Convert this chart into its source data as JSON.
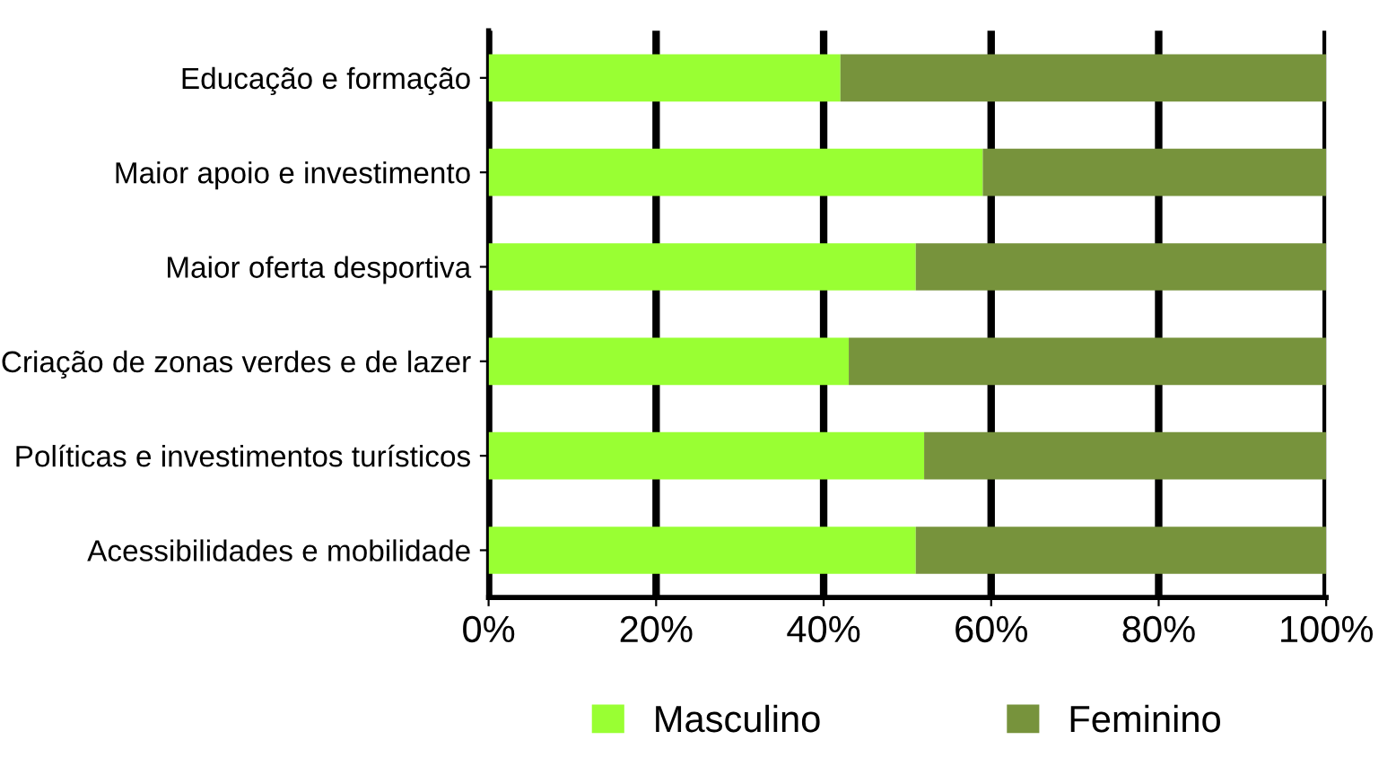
{
  "chart_data": {
    "type": "bar",
    "orientation": "horizontal",
    "stacked": true,
    "categories": [
      "Educação e formação",
      "Maior apoio e investimento",
      "Maior oferta desportiva",
      "Criação de zonas verdes e de lazer",
      "Políticas e investimentos turísticos",
      "Acessibilidades e mobilidade"
    ],
    "series": [
      {
        "name": "Masculino",
        "color": "#99ff33",
        "values": [
          42,
          59,
          51,
          43,
          52,
          51
        ]
      },
      {
        "name": "Feminino",
        "color": "#77933c",
        "values": [
          58,
          41,
          49,
          57,
          48,
          49
        ]
      }
    ],
    "xlim": [
      0,
      100
    ],
    "xticks": [
      {
        "value": 0,
        "label": "0%"
      },
      {
        "value": 20,
        "label": "20%"
      },
      {
        "value": 40,
        "label": "40%"
      },
      {
        "value": 60,
        "label": "60%"
      },
      {
        "value": 80,
        "label": "80%"
      },
      {
        "value": 100,
        "label": "100%"
      }
    ],
    "grid": "x",
    "legend": "bottom"
  }
}
